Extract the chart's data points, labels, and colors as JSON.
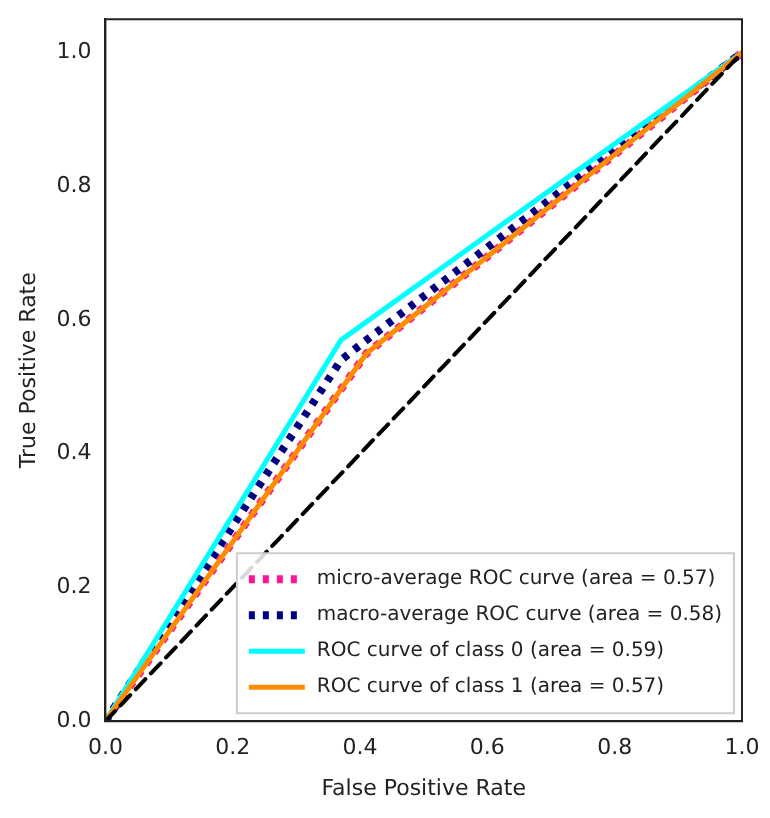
{
  "chart_data": {
    "type": "line",
    "xlabel": "False Positive Rate",
    "ylabel": "True Positive Rate",
    "xlim": [
      0,
      1
    ],
    "ylim": [
      0,
      1.05
    ],
    "xticks": [
      {
        "value": 0,
        "label": "0.0"
      },
      0.2,
      0.4,
      0.6,
      0.8,
      {
        "value": 1,
        "label": "1.0"
      }
    ],
    "yticks": [
      {
        "value": 0,
        "label": "0.0"
      },
      0.2,
      0.4,
      0.6,
      0.8,
      {
        "value": 1,
        "label": "1.0"
      }
    ],
    "grid": false,
    "legend": "bottom right",
    "marker": "none",
    "series": [
      {
        "name": "micro-average ROC curve (area = 0.57)",
        "color": "#ff1493",
        "line_style": "dotted",
        "x": [
          0,
          0.41,
          1
        ],
        "values": [
          0,
          0.55,
          1
        ]
      },
      {
        "name": "macro-average ROC curve (area = 0.58)",
        "color": "#000080",
        "line_style": "dotted",
        "x": [
          0,
          0.37,
          0.41,
          1
        ],
        "values": [
          0,
          0.54,
          0.57,
          1
        ]
      },
      {
        "name": "ROC curve of class 0 (area = 0.59)",
        "color": "#00ffff",
        "line_style": "solid",
        "x": [
          0,
          0.37,
          1
        ],
        "values": [
          0,
          0.57,
          1
        ]
      },
      {
        "name": "ROC curve of class 1 (area = 0.57)",
        "color": "#ff8c00",
        "line_style": "solid",
        "x": [
          0,
          0.41,
          1
        ],
        "values": [
          0,
          0.55,
          1
        ]
      },
      {
        "color": "#000000",
        "line_style": "dashed",
        "x": [
          0,
          1
        ],
        "values": [
          0,
          1
        ]
      }
    ]
  }
}
